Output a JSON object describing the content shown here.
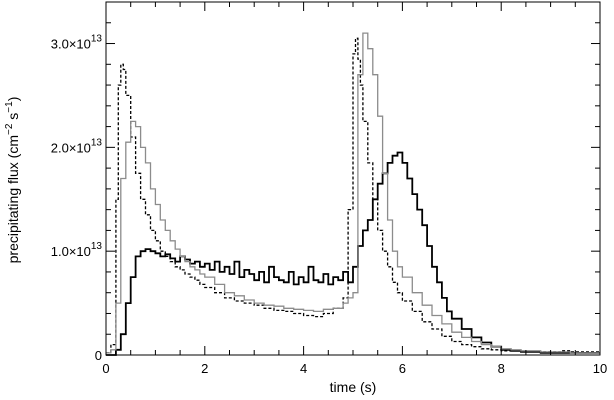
{
  "chart_data": {
    "type": "line",
    "step": true,
    "xlabel": "time (s)",
    "ylabel": "precipitating flux (cm",
    "ylabel_exp1": "−2",
    "ylabel_mid": " s",
    "ylabel_exp2": "−1",
    "ylabel_end": ")",
    "xlim": [
      0,
      10
    ],
    "ylim": [
      0,
      3.4
    ],
    "y_unit_multiplier": "1e13",
    "x_ticks": [
      0,
      2,
      4,
      6,
      8,
      10
    ],
    "x_tick_labels": [
      "0",
      "2",
      "4",
      "6",
      "8",
      "10"
    ],
    "y_ticks": [
      0,
      1,
      2,
      3
    ],
    "y_tick_labels": [
      {
        "base": "0",
        "exp": ""
      },
      {
        "base": "1.0×10",
        "exp": "13"
      },
      {
        "base": "2.0×10",
        "exp": "13"
      },
      {
        "base": "3.0×10",
        "exp": "13"
      }
    ],
    "grid": false,
    "series": [
      {
        "style": "solid-thick",
        "color": "#000000",
        "x": [
          0,
          0.2,
          0.3,
          0.4,
          0.5,
          0.6,
          0.7,
          0.8,
          0.9,
          1.0,
          1.1,
          1.2,
          1.3,
          1.4,
          1.5,
          1.6,
          1.7,
          1.8,
          1.9,
          2.0,
          2.1,
          2.2,
          2.3,
          2.4,
          2.5,
          2.6,
          2.7,
          2.8,
          2.9,
          3.0,
          3.1,
          3.2,
          3.3,
          3.4,
          3.5,
          3.6,
          3.7,
          3.8,
          3.9,
          4.0,
          4.1,
          4.2,
          4.3,
          4.4,
          4.5,
          4.6,
          4.7,
          4.8,
          4.9,
          5.0,
          5.1,
          5.2,
          5.3,
          5.4,
          5.5,
          5.6,
          5.7,
          5.8,
          5.9,
          6.0,
          6.1,
          6.2,
          6.3,
          6.4,
          6.5,
          6.6,
          6.7,
          6.8,
          6.9,
          7.0,
          7.2,
          7.4,
          7.6,
          7.8,
          8.0,
          8.2,
          8.4,
          8.6,
          8.8,
          9.0,
          9.2,
          9.4,
          9.6,
          9.8,
          10.0
        ],
        "y": [
          0.0,
          0.05,
          0.2,
          0.5,
          0.75,
          0.95,
          1.0,
          1.02,
          1.0,
          0.98,
          0.95,
          0.97,
          0.93,
          0.9,
          0.95,
          0.92,
          0.88,
          0.9,
          0.85,
          0.88,
          0.82,
          0.9,
          0.8,
          0.85,
          0.78,
          0.9,
          0.75,
          0.82,
          0.78,
          0.72,
          0.8,
          0.7,
          0.85,
          0.75,
          0.72,
          0.7,
          0.8,
          0.68,
          0.75,
          0.7,
          0.85,
          0.72,
          0.7,
          0.78,
          0.68,
          0.75,
          0.72,
          0.8,
          0.7,
          0.85,
          1.05,
          1.2,
          1.3,
          1.5,
          1.65,
          1.75,
          1.85,
          1.92,
          1.95,
          1.85,
          1.7,
          1.55,
          1.4,
          1.25,
          1.05,
          0.85,
          0.7,
          0.55,
          0.42,
          0.35,
          0.25,
          0.17,
          0.12,
          0.08,
          0.05,
          0.04,
          0.03,
          0.03,
          0.02,
          0.02,
          0.02,
          0.02,
          0.02,
          0.02,
          0.02
        ]
      },
      {
        "style": "dashed",
        "color": "#000000",
        "x": [
          0,
          0.1,
          0.2,
          0.25,
          0.3,
          0.35,
          0.4,
          0.5,
          0.6,
          0.7,
          0.8,
          0.9,
          1.0,
          1.1,
          1.2,
          1.3,
          1.4,
          1.5,
          1.6,
          1.7,
          1.8,
          1.9,
          2.0,
          2.2,
          2.4,
          2.6,
          2.8,
          3.0,
          3.2,
          3.4,
          3.6,
          3.8,
          4.0,
          4.2,
          4.4,
          4.6,
          4.8,
          4.9,
          5.0,
          5.05,
          5.1,
          5.15,
          5.2,
          5.3,
          5.4,
          5.5,
          5.6,
          5.7,
          5.8,
          5.9,
          6.0,
          6.2,
          6.4,
          6.6,
          6.8,
          7.0,
          7.2,
          7.4,
          7.6,
          7.8,
          8.0,
          8.2,
          8.4,
          8.6,
          8.8,
          9.0,
          9.2,
          9.4,
          9.6,
          9.8,
          10.0
        ],
        "y": [
          0.02,
          0.1,
          1.5,
          2.6,
          2.8,
          2.75,
          2.5,
          2.1,
          1.75,
          1.5,
          1.35,
          1.2,
          1.1,
          1.0,
          0.95,
          0.9,
          0.85,
          0.82,
          0.78,
          0.75,
          0.72,
          0.68,
          0.65,
          0.6,
          0.55,
          0.52,
          0.5,
          0.48,
          0.45,
          0.43,
          0.42,
          0.4,
          0.38,
          0.37,
          0.4,
          0.45,
          0.55,
          1.4,
          2.9,
          3.05,
          2.85,
          2.6,
          2.25,
          1.85,
          1.5,
          1.2,
          1.0,
          0.85,
          0.7,
          0.6,
          0.52,
          0.42,
          0.32,
          0.25,
          0.18,
          0.13,
          0.1,
          0.08,
          0.06,
          0.05,
          0.04,
          0.04,
          0.03,
          0.03,
          0.03,
          0.03,
          0.04,
          0.03,
          0.03,
          0.03,
          0.03
        ]
      },
      {
        "style": "solid-gray",
        "color": "#8c8c8c",
        "x": [
          0,
          0.1,
          0.2,
          0.3,
          0.4,
          0.5,
          0.6,
          0.7,
          0.8,
          0.9,
          1.0,
          1.1,
          1.2,
          1.3,
          1.4,
          1.5,
          1.6,
          1.7,
          1.8,
          1.9,
          2.0,
          2.2,
          2.4,
          2.6,
          2.8,
          3.0,
          3.2,
          3.4,
          3.6,
          3.8,
          4.0,
          4.2,
          4.4,
          4.6,
          4.8,
          4.9,
          5.0,
          5.1,
          5.2,
          5.3,
          5.4,
          5.5,
          5.6,
          5.7,
          5.8,
          5.9,
          6.0,
          6.2,
          6.4,
          6.6,
          6.8,
          7.0,
          7.2,
          7.4,
          7.6,
          7.8,
          8.0,
          8.2,
          8.4,
          8.6,
          8.8,
          9.0,
          9.2,
          9.4,
          9.6,
          9.8,
          10.0
        ],
        "y": [
          0.02,
          0.05,
          0.5,
          1.7,
          2.05,
          2.25,
          2.2,
          2.0,
          1.85,
          1.6,
          1.45,
          1.3,
          1.2,
          1.1,
          1.02,
          0.95,
          0.9,
          0.85,
          0.82,
          0.78,
          0.75,
          0.68,
          0.6,
          0.57,
          0.53,
          0.5,
          0.48,
          0.47,
          0.45,
          0.44,
          0.43,
          0.42,
          0.44,
          0.45,
          0.5,
          0.55,
          0.6,
          2.7,
          3.1,
          2.95,
          2.7,
          2.3,
          1.75,
          1.3,
          1.0,
          0.85,
          0.75,
          0.6,
          0.48,
          0.38,
          0.3,
          0.22,
          0.17,
          0.13,
          0.1,
          0.08,
          0.06,
          0.05,
          0.04,
          0.04,
          0.03,
          0.03,
          0.03,
          0.02,
          0.02,
          0.02,
          0.02
        ]
      }
    ]
  }
}
